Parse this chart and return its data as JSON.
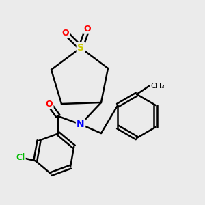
{
  "background_color": "#ebebeb",
  "atom_colors": {
    "S": "#cccc00",
    "O": "#ff0000",
    "N": "#0000ff",
    "Cl": "#00bb00",
    "C": "#000000"
  },
  "bond_color": "#000000",
  "bond_width": 1.8,
  "figsize": [
    3.0,
    3.0
  ],
  "dpi": 100
}
